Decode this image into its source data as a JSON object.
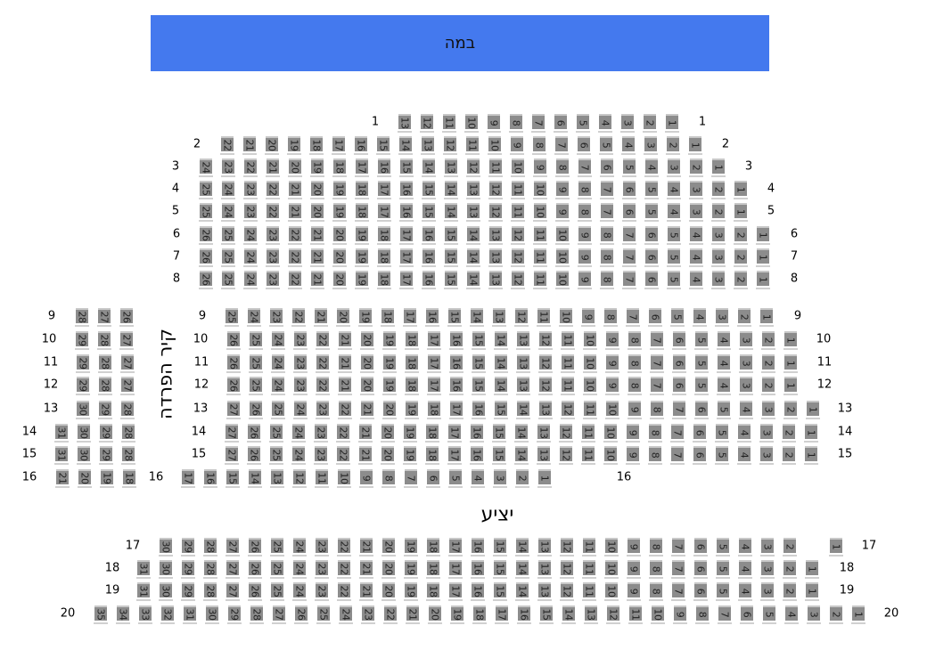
{
  "stage_label": "במה",
  "wall_label": "קיר הפרדה",
  "balcony_label": "יציע",
  "colors": {
    "stage": "#4479ee",
    "seat": "#8c8c8c"
  },
  "rows": [
    {
      "row": "1",
      "blocks": [
        {
          "seats": [
            13,
            12,
            11,
            10,
            9,
            8,
            7,
            6,
            5,
            4,
            3,
            2,
            1
          ]
        }
      ]
    },
    {
      "row": "2",
      "blocks": [
        {
          "seats": [
            22,
            21,
            20,
            19,
            18,
            17,
            16,
            15,
            14,
            13,
            12,
            11,
            10,
            9,
            8,
            7,
            6,
            5,
            4,
            3,
            2,
            1
          ]
        }
      ]
    },
    {
      "row": "3",
      "blocks": [
        {
          "seats": [
            24,
            23,
            22,
            21,
            20,
            19,
            18,
            17,
            16,
            15,
            14,
            13,
            12,
            11,
            10,
            9,
            8,
            7,
            6,
            5,
            4,
            3,
            2,
            1
          ]
        }
      ]
    },
    {
      "row": "4",
      "blocks": [
        {
          "seats": [
            25,
            24,
            23,
            22,
            21,
            20,
            19,
            18,
            17,
            16,
            15,
            14,
            13,
            12,
            11,
            10,
            9,
            8,
            7,
            6,
            5,
            4,
            3,
            2,
            1
          ]
        }
      ]
    },
    {
      "row": "5",
      "blocks": [
        {
          "seats": [
            25,
            24,
            23,
            22,
            21,
            20,
            19,
            18,
            17,
            16,
            15,
            14,
            13,
            12,
            11,
            10,
            9,
            8,
            7,
            6,
            5,
            4,
            3,
            2,
            1
          ]
        }
      ]
    },
    {
      "row": "6",
      "blocks": [
        {
          "seats": [
            26,
            25,
            24,
            23,
            22,
            21,
            20,
            19,
            18,
            17,
            16,
            15,
            14,
            13,
            12,
            11,
            10,
            9,
            8,
            7,
            6,
            5,
            4,
            3,
            2,
            1
          ]
        }
      ]
    },
    {
      "row": "7",
      "blocks": [
        {
          "seats": [
            26,
            25,
            24,
            23,
            22,
            21,
            20,
            19,
            18,
            17,
            16,
            15,
            14,
            13,
            12,
            11,
            10,
            9,
            8,
            7,
            6,
            5,
            4,
            3,
            2,
            1
          ]
        }
      ]
    },
    {
      "row": "8",
      "blocks": [
        {
          "seats": [
            26,
            25,
            24,
            23,
            22,
            21,
            20,
            19,
            18,
            17,
            16,
            15,
            14,
            13,
            12,
            11,
            10,
            9,
            8,
            7,
            6,
            5,
            4,
            3,
            2,
            1
          ]
        }
      ]
    },
    {
      "row": "9",
      "blocks": [
        {
          "seats": [
            28,
            27,
            26
          ]
        },
        {
          "seats": [
            25,
            24,
            23,
            22,
            21,
            20,
            19,
            18,
            17,
            16,
            15,
            14,
            13,
            12,
            11,
            10,
            9,
            8,
            7,
            6,
            5,
            4,
            3,
            2,
            1
          ]
        }
      ]
    },
    {
      "row": "10",
      "blocks": [
        {
          "seats": [
            29,
            28,
            27
          ]
        },
        {
          "seats": [
            26,
            25,
            24,
            23,
            22,
            21,
            20,
            19,
            18,
            17,
            16,
            15,
            14,
            13,
            12,
            11,
            10,
            9,
            8,
            7,
            6,
            5,
            4,
            3,
            2,
            1
          ]
        }
      ]
    },
    {
      "row": "11",
      "blocks": [
        {
          "seats": [
            29,
            28,
            27
          ]
        },
        {
          "seats": [
            26,
            25,
            24,
            23,
            22,
            21,
            20,
            19,
            18,
            17,
            16,
            15,
            14,
            13,
            12,
            11,
            10,
            9,
            8,
            7,
            6,
            5,
            4,
            3,
            2,
            1
          ]
        }
      ]
    },
    {
      "row": "12",
      "blocks": [
        {
          "seats": [
            29,
            28,
            27
          ]
        },
        {
          "seats": [
            26,
            25,
            24,
            23,
            22,
            21,
            20,
            19,
            18,
            17,
            16,
            15,
            14,
            13,
            12,
            11,
            10,
            9,
            8,
            7,
            6,
            5,
            4,
            3,
            2,
            1
          ]
        }
      ]
    },
    {
      "row": "13",
      "blocks": [
        {
          "seats": [
            30,
            29,
            28
          ]
        },
        {
          "seats": [
            27,
            26,
            25,
            24,
            23,
            22,
            21,
            20,
            19,
            18,
            17,
            16,
            15,
            14,
            13,
            12,
            11,
            10,
            9,
            8,
            7,
            6,
            5,
            4,
            3,
            2,
            1
          ]
        }
      ]
    },
    {
      "row": "14",
      "blocks": [
        {
          "seats": [
            31,
            30,
            29,
            28
          ]
        },
        {
          "seats": [
            27,
            26,
            25,
            24,
            23,
            22,
            21,
            20,
            19,
            18,
            17,
            16,
            15,
            14,
            13,
            12,
            11,
            10,
            9,
            8,
            7,
            6,
            5,
            4,
            3,
            2,
            1
          ]
        }
      ]
    },
    {
      "row": "15",
      "blocks": [
        {
          "seats": [
            31,
            30,
            29,
            28
          ]
        },
        {
          "seats": [
            27,
            26,
            25,
            24,
            23,
            22,
            21,
            20,
            19,
            18,
            17,
            16,
            15,
            14,
            13,
            12,
            11,
            10,
            9,
            8,
            7,
            6,
            5,
            4,
            3,
            2,
            1
          ]
        }
      ]
    },
    {
      "row": "16",
      "blocks": [
        {
          "seats": [
            21,
            20,
            19,
            18
          ]
        },
        {
          "seats": [
            17,
            16,
            15,
            14,
            13,
            12,
            11,
            10,
            9,
            8,
            7,
            6,
            5,
            4,
            3,
            2,
            1
          ]
        }
      ]
    },
    {
      "row": "17",
      "blocks": [
        {
          "seats": [
            30,
            29,
            28,
            27,
            26,
            25,
            24,
            23,
            22,
            21,
            20,
            19,
            18,
            17,
            16,
            15,
            14,
            13,
            12,
            11,
            10,
            9,
            8,
            7,
            6,
            5,
            4,
            3,
            2
          ]
        },
        {
          "seats": [
            1
          ]
        }
      ]
    },
    {
      "row": "18",
      "blocks": [
        {
          "seats": [
            31,
            30,
            29,
            28,
            27,
            26,
            25,
            24,
            23,
            22,
            21,
            20,
            19,
            18,
            17,
            16,
            15,
            14,
            13,
            12,
            11,
            10,
            9,
            8,
            7,
            6,
            5,
            4,
            3,
            2,
            1
          ]
        }
      ]
    },
    {
      "row": "19",
      "blocks": [
        {
          "seats": [
            31,
            30,
            29,
            28,
            27,
            26,
            25,
            24,
            23,
            22,
            21,
            20,
            19,
            18,
            17,
            16,
            15,
            14,
            13,
            12,
            11,
            10,
            9,
            8,
            7,
            6,
            5,
            4,
            3,
            2,
            1
          ]
        }
      ]
    },
    {
      "row": "20",
      "blocks": [
        {
          "seats": [
            35,
            34,
            33,
            32,
            31,
            30,
            29,
            28,
            27,
            26,
            25,
            24,
            23,
            22,
            21,
            20,
            19,
            18,
            17,
            16,
            15,
            14,
            13,
            12,
            11,
            10,
            9,
            8,
            7,
            6,
            5,
            4,
            3,
            2,
            1
          ]
        }
      ]
    }
  ]
}
